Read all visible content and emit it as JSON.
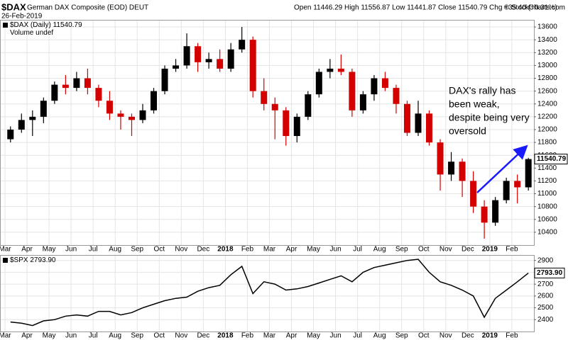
{
  "header": {
    "symbol": "$DAX",
    "description": "German DAX Composite (EOD) DEUT",
    "date": "26-Feb-2019",
    "quote": "Open 11446.29 High 11556.87 Low 11441.87 Close 11540.79 Chg +35.40 (+0.31%)",
    "source": "© StockCharts.com"
  },
  "chart_data": [
    {
      "type": "candlestick",
      "legend": [
        "$DAX (Daily) 11540.79",
        "Volume undef"
      ],
      "categories": [
        "Mar",
        null,
        "Apr",
        null,
        "May",
        null,
        "Jun",
        null,
        "Jul",
        null,
        "Aug",
        null,
        "Sep",
        null,
        "Oct",
        null,
        "Nov",
        null,
        "Dec",
        null,
        "2018",
        null,
        "Feb",
        null,
        "Mar",
        null,
        "Apr",
        null,
        "May",
        null,
        "Jun",
        null,
        "Jul",
        null,
        "Aug",
        null,
        "Sep",
        null,
        "Oct",
        null,
        "Nov",
        null,
        "Dec",
        null,
        "2019",
        null,
        "Feb",
        null
      ],
      "open": [
        11850,
        12000,
        12150,
        12200,
        12450,
        12700,
        12650,
        12800,
        12650,
        12450,
        12250,
        12200,
        12150,
        12300,
        12600,
        12950,
        13000,
        13300,
        13050,
        13100,
        12950,
        13250,
        13400,
        12600,
        12400,
        12300,
        11900,
        12200,
        12550,
        12900,
        12950,
        12900,
        12300,
        12550,
        12800,
        12650,
        12400,
        11950,
        12250,
        11800,
        11300,
        11500,
        11200,
        10800,
        10550,
        10900,
        11200,
        11100
      ],
      "high": [
        12050,
        12250,
        12300,
        12500,
        12750,
        12850,
        12900,
        12950,
        12700,
        12600,
        12300,
        12250,
        12400,
        12650,
        13000,
        13100,
        13500,
        13350,
        13200,
        13250,
        13350,
        13600,
        13450,
        12800,
        12500,
        12350,
        12250,
        12600,
        12950,
        13100,
        13170,
        12950,
        12600,
        12850,
        12900,
        12700,
        12450,
        12450,
        12300,
        11850,
        11650,
        11550,
        11350,
        10900,
        10950,
        11250,
        11300,
        11560
      ],
      "low": [
        11800,
        11950,
        11900,
        12100,
        12400,
        12550,
        12600,
        12550,
        12350,
        12150,
        12000,
        11900,
        12100,
        12250,
        12550,
        12900,
        12950,
        12900,
        12950,
        12900,
        12900,
        13200,
        12500,
        12300,
        11850,
        11750,
        11800,
        12150,
        12500,
        12800,
        12850,
        12200,
        12250,
        12450,
        12600,
        12250,
        11900,
        11900,
        11750,
        11050,
        11200,
        10950,
        10700,
        10300,
        10500,
        10850,
        10850,
        11050
      ],
      "close": [
        12000,
        12150,
        12200,
        12450,
        12700,
        12650,
        12800,
        12650,
        12450,
        12250,
        12200,
        12150,
        12300,
        12600,
        12950,
        13000,
        13300,
        13050,
        13100,
        12950,
        13250,
        13400,
        12600,
        12400,
        12300,
        11900,
        12200,
        12550,
        12900,
        12950,
        12900,
        12300,
        12550,
        12800,
        12650,
        12400,
        11950,
        12250,
        11800,
        11300,
        11500,
        11200,
        10800,
        10550,
        10900,
        11200,
        11100,
        11540.79
      ],
      "up_color": "#000000",
      "down_color": "#d40000",
      "ylim": [
        10200,
        13700
      ],
      "yticks": [
        10400,
        10600,
        10800,
        11000,
        11200,
        11400,
        11600,
        11800,
        12000,
        12200,
        12400,
        12600,
        12800,
        13000,
        13200,
        13400,
        13600
      ],
      "grid": true,
      "annotation": {
        "lines": [
          "DAX's rally has",
          "been weak,",
          "despite being very",
          "oversold"
        ],
        "color": "#1a1aff"
      }
    },
    {
      "type": "line",
      "legend": [
        "$SPX 2793.90"
      ],
      "last_value_label": "2793.90",
      "values": [
        2380,
        2370,
        2350,
        2390,
        2400,
        2430,
        2440,
        2430,
        2470,
        2470,
        2440,
        2460,
        2500,
        2530,
        2560,
        2580,
        2590,
        2640,
        2670,
        2690,
        2780,
        2850,
        2620,
        2720,
        2700,
        2650,
        2660,
        2680,
        2710,
        2740,
        2770,
        2720,
        2800,
        2840,
        2860,
        2880,
        2900,
        2910,
        2800,
        2720,
        2690,
        2650,
        2600,
        2420,
        2580,
        2650,
        2720,
        2793.9
      ],
      "color": "#000000",
      "ylim": [
        2300,
        2940
      ],
      "yticks": [
        2400,
        2500,
        2600,
        2700,
        2800,
        2900
      ],
      "grid": true
    }
  ]
}
